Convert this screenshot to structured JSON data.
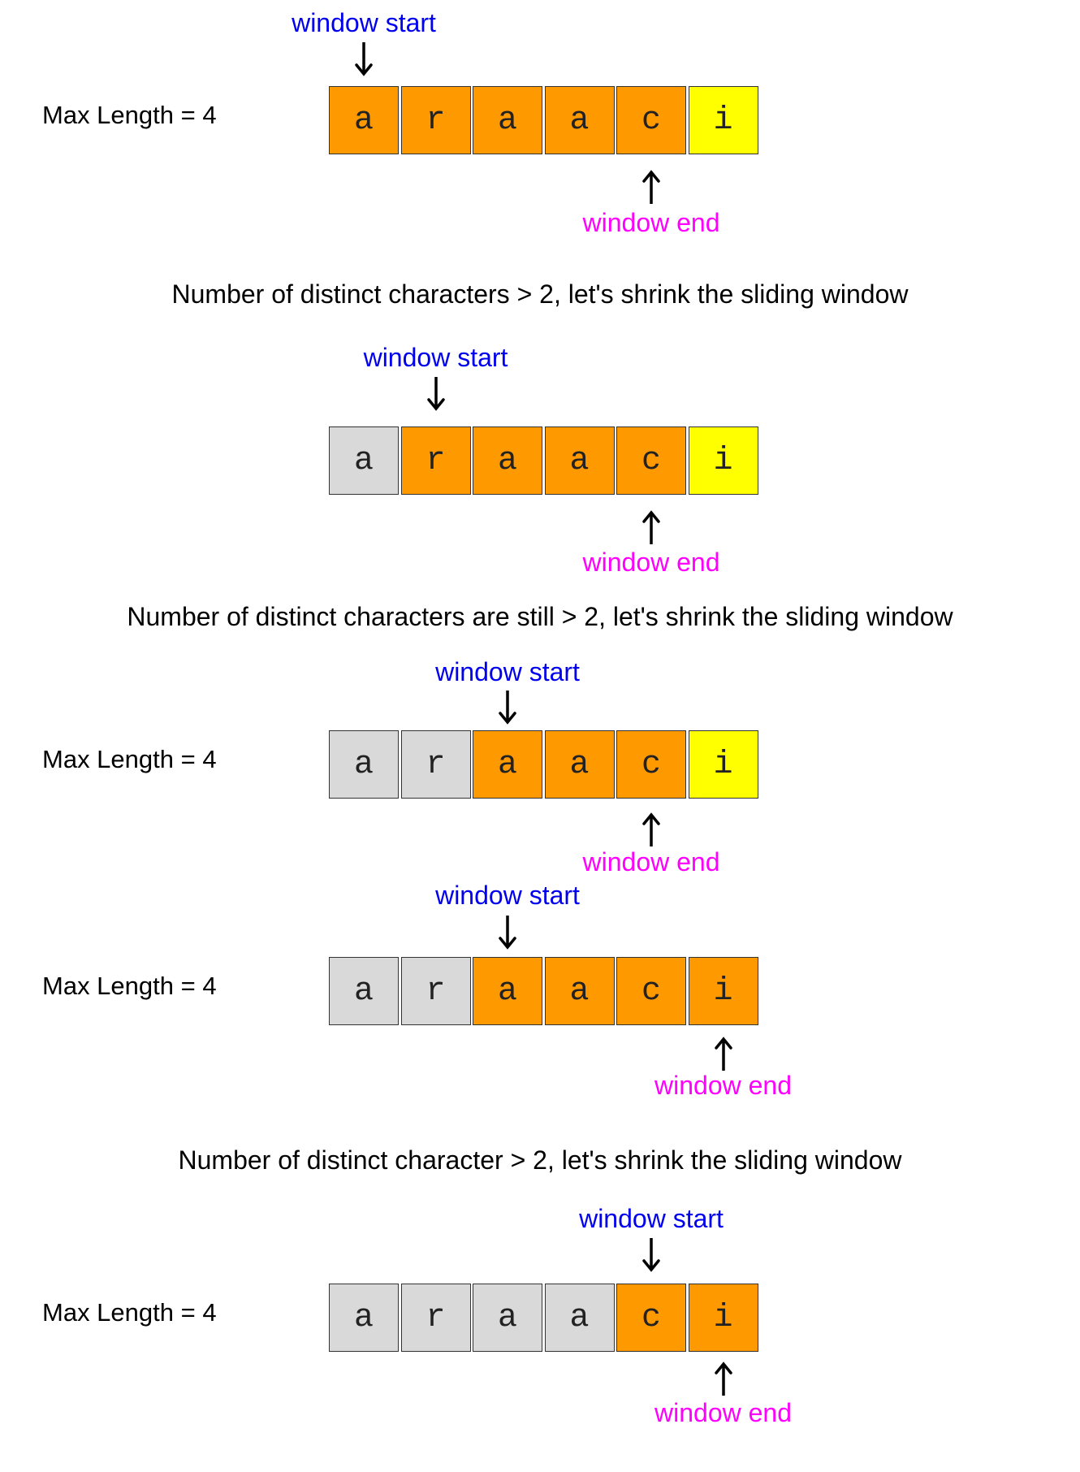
{
  "steps": [
    {
      "max_length": "Max Length = 4",
      "chars": [
        "a",
        "r",
        "a",
        "a",
        "c",
        "i"
      ],
      "states": [
        "window",
        "window",
        "window",
        "window",
        "window",
        "new"
      ],
      "start_label": "window start",
      "end_label": "window end",
      "start_index": 0,
      "end_index": 4
    },
    {
      "max_length": "",
      "chars": [
        "a",
        "r",
        "a",
        "a",
        "c",
        "i"
      ],
      "states": [
        "excluded",
        "window",
        "window",
        "window",
        "window",
        "new"
      ],
      "start_label": "window start",
      "end_label": "window end",
      "start_index": 1,
      "end_index": 4
    },
    {
      "max_length": "Max Length = 4",
      "chars": [
        "a",
        "r",
        "a",
        "a",
        "c",
        "i"
      ],
      "states": [
        "excluded",
        "excluded",
        "window",
        "window",
        "window",
        "new"
      ],
      "start_label": "window start",
      "end_label": "window end",
      "start_index": 2,
      "end_index": 4
    },
    {
      "max_length": "Max Length = 4",
      "chars": [
        "a",
        "r",
        "a",
        "a",
        "c",
        "i"
      ],
      "states": [
        "excluded",
        "excluded",
        "window",
        "window",
        "window",
        "window"
      ],
      "start_label": "window start",
      "end_label": "window end",
      "start_index": 2,
      "end_index": 5
    },
    {
      "max_length": "Max Length = 4",
      "chars": [
        "a",
        "r",
        "a",
        "a",
        "c",
        "i"
      ],
      "states": [
        "excluded",
        "excluded",
        "excluded",
        "excluded",
        "window",
        "window"
      ],
      "start_label": "window start",
      "end_label": "window end",
      "start_index": 4,
      "end_index": 5
    }
  ],
  "notes": [
    "Number of distinct characters > 2, let's shrink the sliding window",
    "Number of distinct characters are still > 2, let's shrink the sliding window",
    "Number of distinct character > 2, let's shrink the sliding window"
  ],
  "colors": {
    "excluded": "#d9d9d9",
    "window": "#ff9900",
    "new": "#ffff00",
    "start_label": "#0000ee",
    "end_label": "#ff00ff"
  }
}
